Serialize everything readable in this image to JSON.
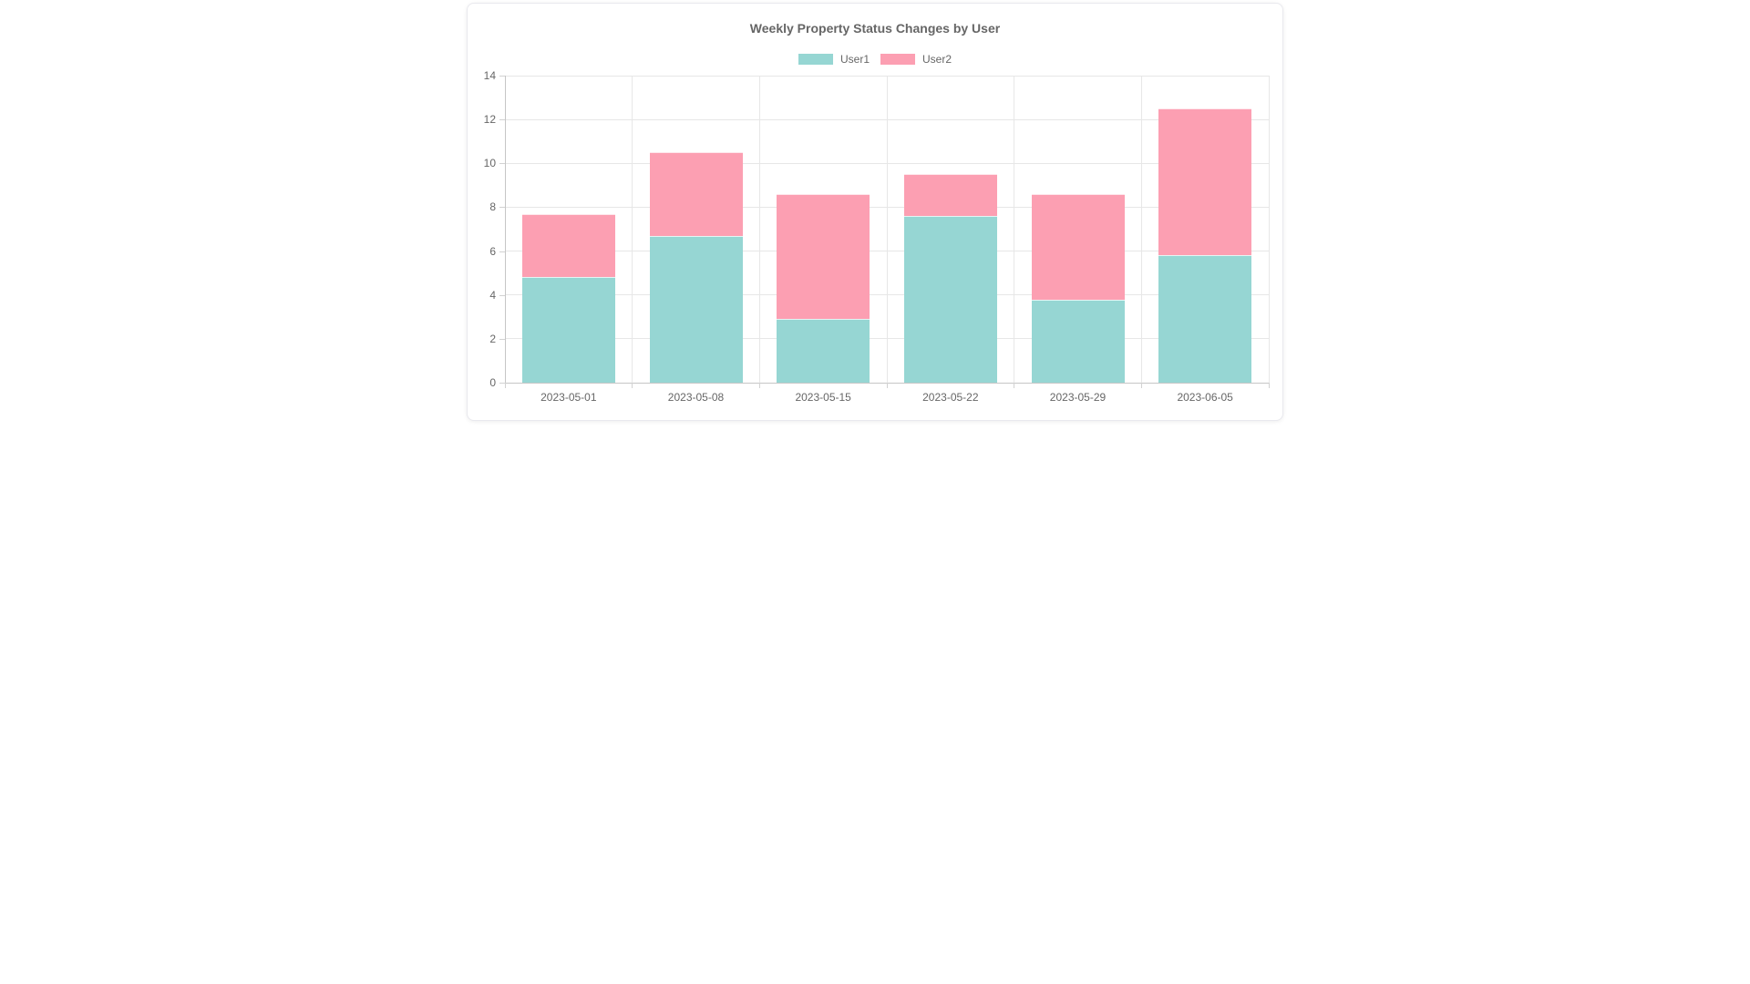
{
  "card": {
    "background": "#ffffff",
    "border_color": "#e9e9ee"
  },
  "chart_data": {
    "type": "bar",
    "stacked": true,
    "title": "Weekly Property Status Changes by User",
    "categories": [
      "2023-05-01",
      "2023-05-08",
      "2023-05-15",
      "2023-05-22",
      "2023-05-29",
      "2023-06-05"
    ],
    "series": [
      {
        "name": "User1",
        "color": "#96d6d3",
        "values": [
          4.8,
          6.7,
          2.9,
          7.6,
          3.8,
          5.8
        ]
      },
      {
        "name": "User2",
        "color": "#fc9fb2",
        "values": [
          2.9,
          3.8,
          5.7,
          1.9,
          4.8,
          6.7
        ]
      }
    ],
    "stacked_totals": [
      7.7,
      10.5,
      8.6,
      9.5,
      8.6,
      12.5
    ],
    "xlabel": "",
    "ylabel": "",
    "ylim": [
      0,
      14
    ],
    "yticks": [
      0,
      2,
      4,
      6,
      8,
      10,
      12,
      14
    ],
    "grid": true,
    "legend_position": "top",
    "colors": {
      "text": "#666666",
      "grid": "#e7e7e7",
      "axis": "#c6c6c6",
      "tick_mark": "#d2d2d2"
    }
  }
}
